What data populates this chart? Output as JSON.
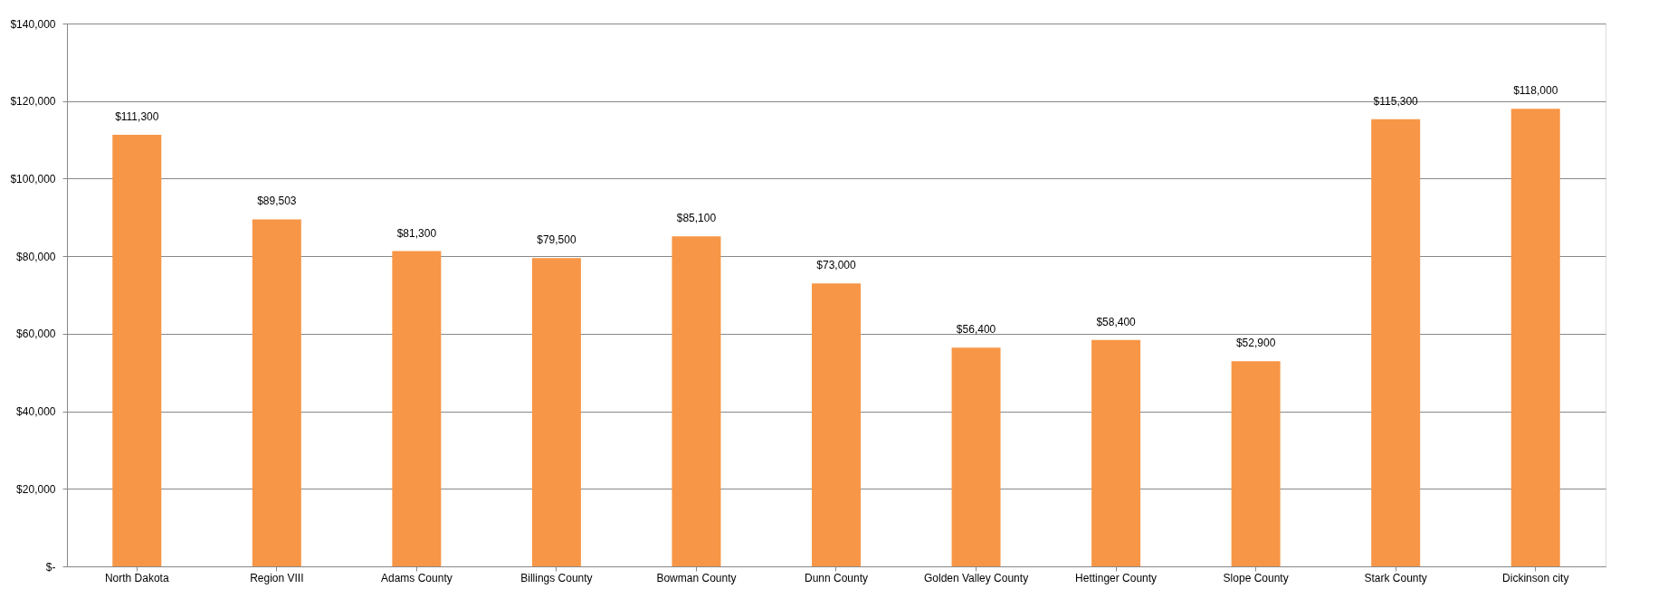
{
  "chart_data": {
    "type": "bar",
    "categories": [
      "North Dakota",
      "Region VIII",
      "Adams County",
      "Billings County",
      "Bowman County",
      "Dunn County",
      "Golden Valley County",
      "Hettinger County",
      "Slope County",
      "Stark County",
      "Dickinson city"
    ],
    "values": [
      111300,
      89503,
      81300,
      79500,
      85100,
      73000,
      56400,
      58400,
      52900,
      115300,
      118000
    ],
    "value_labels": [
      "$111,300",
      "$89,503",
      "$81,300",
      "$79,500",
      "$85,100",
      "$73,000",
      "$56,400",
      "$58,400",
      "$52,900",
      "$115,300",
      "$118,000"
    ],
    "color": "#f79646",
    "ylim": [
      0,
      140000
    ],
    "yticks": [
      {
        "value": 0,
        "label": "$-"
      },
      {
        "value": 20000,
        "label": "$20,000"
      },
      {
        "value": 40000,
        "label": "$40,000"
      },
      {
        "value": 60000,
        "label": "$60,000"
      },
      {
        "value": 80000,
        "label": "$80,000"
      },
      {
        "value": 100000,
        "label": "$100,000"
      },
      {
        "value": 120000,
        "label": "$120,000"
      },
      {
        "value": 140000,
        "label": "$140,000"
      }
    ],
    "grid": "y"
  }
}
